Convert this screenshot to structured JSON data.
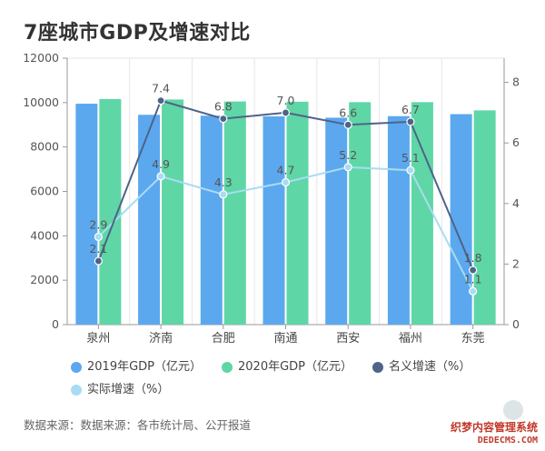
{
  "title": "7座城市GDP及增速对比",
  "chart_data": {
    "type": "bar",
    "categories": [
      "泉州",
      "济南",
      "合肥",
      "南通",
      "西安",
      "福州",
      "东莞"
    ],
    "series": [
      {
        "name": "2019年GDP（亿元）",
        "kind": "bar",
        "axis": "left",
        "color": "#5ba8ef",
        "values": [
          9950,
          9450,
          9410,
          9380,
          9320,
          9390,
          9480
        ]
      },
      {
        "name": "2020年GDP（亿元）",
        "kind": "bar",
        "axis": "left",
        "color": "#5fd6a6",
        "values": [
          10160,
          10140,
          10050,
          10040,
          10020,
          10020,
          9650
        ]
      },
      {
        "name": "名义增速（%）",
        "kind": "line",
        "axis": "right",
        "color": "#4f6388",
        "values": [
          2.1,
          7.4,
          6.8,
          7.0,
          6.6,
          6.7,
          1.8
        ],
        "labels": [
          "2.1",
          "7.4",
          "6.8",
          "7.0",
          "6.6",
          "6.7",
          "1.8"
        ]
      },
      {
        "name": "实际增速（%）",
        "kind": "line",
        "axis": "right",
        "color": "#a9dcf2",
        "values": [
          2.9,
          4.9,
          4.3,
          4.7,
          5.2,
          5.1,
          1.1
        ],
        "labels": [
          "2.9",
          "4.9",
          "4.3",
          "4.7",
          "5.2",
          "5.1",
          "1.1"
        ]
      }
    ],
    "y_left": {
      "min": 0,
      "max": 12000,
      "ticks": [
        "0",
        "2000",
        "4000",
        "6000",
        "8000",
        "10000",
        "12000"
      ]
    },
    "y_right": {
      "min": 0,
      "max": 8.8,
      "ticks": [
        "0",
        "2",
        "4",
        "6",
        "8"
      ]
    },
    "grid": true,
    "legend_position": "bottom"
  },
  "source": "数据来源：数据来源：各市统计局、公开报道",
  "watermark": {
    "cn": "织梦内容管理系统",
    "en": "DEDECMS.COM"
  }
}
